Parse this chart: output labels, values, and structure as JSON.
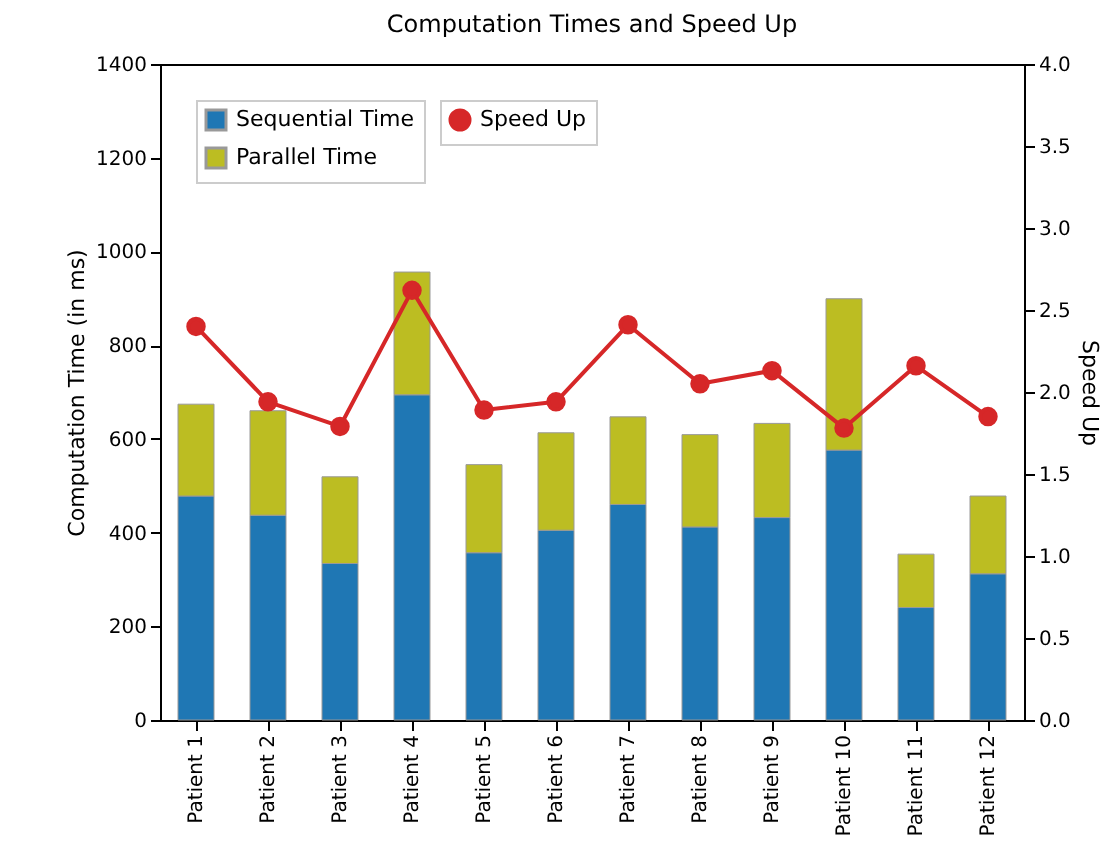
{
  "chart_data": {
    "type": "bar",
    "title": "Computation Times and Speed Up",
    "ylabel": "Computation Time (in ms)",
    "y2label": "Speed Up",
    "stacked": true,
    "legend": "top left",
    "marker": "circle",
    "line_style": "solid",
    "categories": [
      "Patient 1",
      "Patient 2",
      "Patient 3",
      "Patient 4",
      "Patient 5",
      "Patient 6",
      "Patient 7",
      "Patient 8",
      "Patient 9",
      "Patient 10",
      "Patient 11",
      "Patient 12"
    ],
    "series": [
      {
        "name": "Sequential Time",
        "color": "#1f77b4",
        "values": [
          478,
          437,
          334,
          694,
          357,
          405,
          460,
          412,
          432,
          576,
          240,
          312
        ]
      },
      {
        "name": "Parallel Time",
        "color": "#bcbd22",
        "values": [
          196,
          223,
          185,
          262,
          188,
          208,
          187,
          197,
          201,
          323,
          114,
          166
        ]
      },
      {
        "name": "Speed Up",
        "type": "line",
        "axis": "y2",
        "color": "#d62728",
        "values": [
          2.4,
          1.94,
          1.79,
          2.62,
          1.89,
          1.94,
          2.41,
          2.05,
          2.13,
          1.78,
          2.16,
          1.85
        ]
      }
    ],
    "ylim": [
      0,
      1400
    ],
    "yticks": [
      0,
      200,
      400,
      600,
      800,
      1000,
      1200,
      1400
    ],
    "y2lim": [
      0,
      4
    ],
    "y2ticks": [
      {
        "value": 0,
        "label": "0.0"
      },
      {
        "value": 0.5,
        "label": "0.5"
      },
      {
        "value": 1,
        "label": "1.0"
      },
      {
        "value": 1.5,
        "label": "1.5"
      },
      {
        "value": 2,
        "label": "2.0"
      },
      {
        "value": 2.5,
        "label": "2.5"
      },
      {
        "value": 3,
        "label": "3.0"
      },
      {
        "value": 3.5,
        "label": "3.5"
      },
      {
        "value": 4,
        "label": "4.0"
      }
    ]
  }
}
